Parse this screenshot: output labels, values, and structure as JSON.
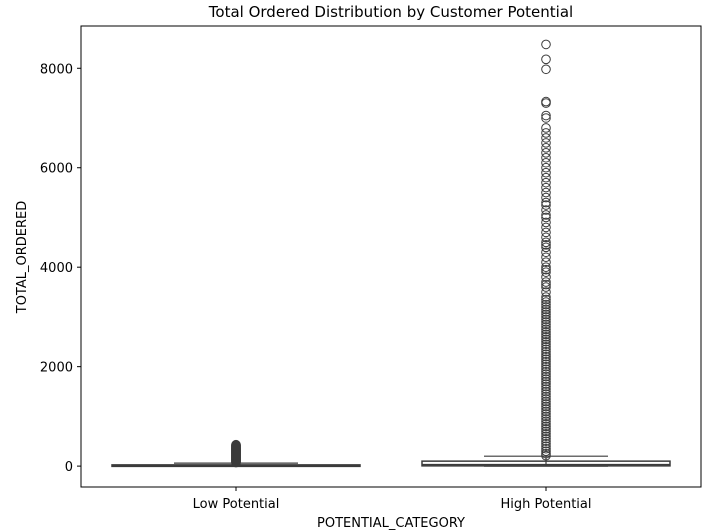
{
  "chart_data": {
    "type": "box",
    "title": "Total Ordered Distribution by Customer Potential",
    "xlabel": "POTENTIAL_CATEGORY",
    "ylabel": "TOTAL_ORDERED",
    "categories": [
      "Low Potential",
      "High Potential"
    ],
    "ylim": [
      -420,
      8850
    ],
    "yticks": [
      0,
      2000,
      4000,
      6000,
      8000
    ],
    "grid": false,
    "legend": "none",
    "box_color": "#3b3b3b",
    "boxes": [
      {
        "category": "Low Potential",
        "whisker_low": 0,
        "q1": 2,
        "median": 10,
        "q3": 25,
        "whisker_high": 60,
        "outliers": [
          70,
          80,
          90,
          100,
          110,
          120,
          130,
          140,
          150,
          160,
          170,
          180,
          190,
          200,
          210,
          220,
          230,
          240,
          250,
          260,
          270,
          280,
          290,
          300,
          310,
          320,
          330,
          340,
          350,
          360,
          370,
          380,
          390,
          400,
          410,
          420,
          430
        ]
      },
      {
        "category": "High Potential",
        "whisker_low": 0,
        "q1": 5,
        "median": 30,
        "q3": 100,
        "whisker_high": 200,
        "outliers": [
          210,
          250,
          300,
          350,
          400,
          450,
          500,
          550,
          600,
          650,
          700,
          750,
          800,
          850,
          900,
          950,
          1000,
          1050,
          1100,
          1150,
          1200,
          1250,
          1300,
          1350,
          1400,
          1450,
          1500,
          1550,
          1600,
          1650,
          1700,
          1750,
          1800,
          1850,
          1900,
          1950,
          2000,
          2050,
          2100,
          2150,
          2200,
          2250,
          2300,
          2350,
          2400,
          2450,
          2500,
          2550,
          2600,
          2650,
          2700,
          2750,
          2800,
          2850,
          2900,
          2950,
          3000,
          3050,
          3100,
          3150,
          3200,
          3250,
          3300,
          3350,
          3400,
          3500,
          3600,
          3650,
          3700,
          3800,
          3900,
          3950,
          4000,
          4100,
          4200,
          4300,
          4400,
          4450,
          4500,
          4600,
          4700,
          4800,
          4900,
          5000,
          5050,
          5150,
          5250,
          5300,
          5400,
          5500,
          5600,
          5700,
          5800,
          5900,
          6000,
          6100,
          6200,
          6300,
          6400,
          6500,
          6600,
          6700,
          6800,
          7000,
          7050,
          7300,
          7330,
          7980,
          8180,
          8480
        ]
      }
    ]
  }
}
